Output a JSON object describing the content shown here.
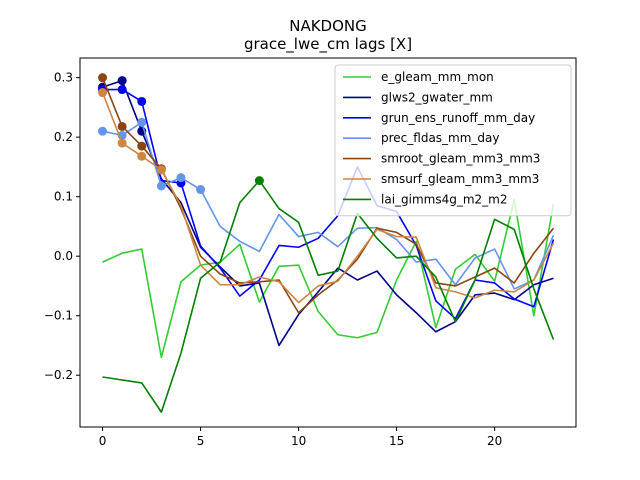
{
  "chart_data": {
    "type": "line",
    "title": "NAKDONG",
    "subtitle": "grace_lwe_cm lags [X]",
    "xlabel": "",
    "ylabel": "",
    "xlim": [
      -1.15,
      24.15
    ],
    "ylim": [
      -0.287,
      0.333
    ],
    "x_ticks": [
      0,
      5,
      10,
      15,
      20
    ],
    "y_ticks": [
      -0.2,
      -0.1,
      0.0,
      0.1,
      0.2,
      0.3
    ],
    "x_tick_labels": [
      "0",
      "5",
      "10",
      "15",
      "20"
    ],
    "y_tick_labels": [
      "−0.2",
      "−0.1",
      "0.0",
      "0.1",
      "0.2",
      "0.3"
    ],
    "legend_position": "upper-right",
    "x": [
      0,
      1,
      2,
      3,
      4,
      5,
      6,
      7,
      8,
      9,
      10,
      11,
      12,
      13,
      14,
      15,
      16,
      17,
      18,
      19,
      20,
      21,
      22,
      23
    ],
    "series": [
      {
        "name": "e_gleam_mm_mon",
        "color": "#32cd32",
        "values": [
          -0.01,
          0.005,
          0.012,
          -0.17,
          -0.043,
          -0.015,
          -0.01,
          0.02,
          -0.077,
          -0.017,
          -0.015,
          -0.093,
          -0.132,
          -0.137,
          -0.128,
          -0.04,
          0.025,
          -0.12,
          -0.022,
          0.003,
          -0.042,
          0.095,
          -0.1,
          0.088
        ],
        "markers": []
      },
      {
        "name": "glws2_gwater_mm",
        "color": "#00008b",
        "values": [
          0.284,
          0.295,
          0.21,
          0.13,
          0.09,
          0.015,
          -0.018,
          -0.05,
          -0.045,
          -0.15,
          -0.098,
          -0.06,
          -0.02,
          -0.04,
          -0.025,
          -0.065,
          -0.095,
          -0.127,
          -0.11,
          -0.065,
          -0.062,
          -0.073,
          -0.048,
          -0.037
        ],
        "markers": [
          0,
          1,
          2
        ]
      },
      {
        "name": "grun_ens_runoff_mm_day",
        "color": "#0000ff",
        "values": [
          0.28,
          0.28,
          0.26,
          0.127,
          0.123,
          0.017,
          -0.02,
          -0.067,
          -0.04,
          0.018,
          0.015,
          0.03,
          0.068,
          0.15,
          0.085,
          0.075,
          0.018,
          -0.075,
          -0.105,
          -0.04,
          -0.045,
          -0.072,
          -0.085,
          0.028
        ],
        "markers": [
          0,
          1,
          2,
          4
        ]
      },
      {
        "name": "prec_fldas_mm_day",
        "color": "#6495ed",
        "values": [
          0.21,
          0.203,
          0.225,
          0.118,
          0.132,
          0.112,
          0.05,
          0.025,
          0.008,
          0.07,
          0.033,
          0.04,
          0.016,
          0.047,
          0.048,
          0.028,
          -0.01,
          -0.005,
          -0.048,
          -0.003,
          0.012,
          -0.055,
          -0.04,
          0.035
        ],
        "markers": [
          0,
          1,
          2,
          3,
          4,
          5
        ]
      },
      {
        "name": "smroot_gleam_mm3_mm3",
        "color": "#8b4513",
        "values": [
          0.3,
          0.218,
          0.185,
          0.147,
          0.08,
          0.0,
          -0.03,
          -0.045,
          -0.043,
          -0.04,
          -0.095,
          -0.065,
          -0.04,
          -0.005,
          0.047,
          0.04,
          0.02,
          -0.045,
          -0.05,
          -0.035,
          -0.02,
          -0.045,
          0.005,
          0.047
        ],
        "markers": [
          0,
          1,
          2,
          3
        ]
      },
      {
        "name": "smsurf_gleam_mm3_mm3",
        "color": "#cd853f",
        "values": [
          0.275,
          0.19,
          0.168,
          0.145,
          0.085,
          -0.015,
          -0.048,
          -0.048,
          -0.035,
          -0.043,
          -0.078,
          -0.05,
          -0.042,
          0.0,
          0.045,
          0.033,
          0.032,
          -0.053,
          -0.06,
          -0.07,
          -0.057,
          -0.06,
          -0.04,
          0.022
        ],
        "markers": [
          0,
          1,
          2,
          3
        ]
      },
      {
        "name": "lai_gimms4g_m2_m2",
        "color": "#008000",
        "values": [
          -0.203,
          -0.208,
          -0.213,
          -0.262,
          -0.163,
          -0.037,
          -0.01,
          0.09,
          0.127,
          0.08,
          0.057,
          -0.032,
          -0.025,
          0.072,
          0.03,
          -0.003,
          0.0,
          -0.035,
          -0.11,
          -0.04,
          0.062,
          0.045,
          -0.055,
          -0.14
        ],
        "markers": [
          8
        ]
      }
    ]
  }
}
